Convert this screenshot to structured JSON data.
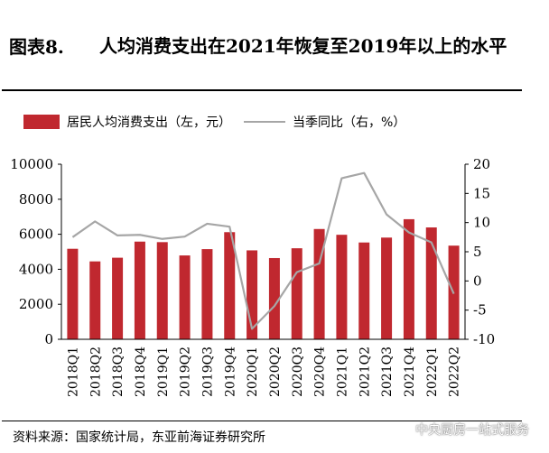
{
  "header": {
    "figure_label": "图表8.",
    "title": "人均消费支出在2021年恢复至2019年以上的水平"
  },
  "legend": {
    "bar_label": "居民人均消费支出（左，元）",
    "line_label": "当季同比（右，%）"
  },
  "footer": {
    "source": "资料来源：国家统计局，东亚前海证券研究所",
    "watermark": "中央厨房一站式服务"
  },
  "colors": {
    "bar": "#c0282f",
    "line": "#a6a6a6",
    "axis": "#000000"
  },
  "chart_data": {
    "type": "bar",
    "categories": [
      "2018Q1",
      "2018Q2",
      "2018Q3",
      "2018Q4",
      "2019Q1",
      "2019Q2",
      "2019Q3",
      "2019Q4",
      "2020Q1",
      "2020Q2",
      "2020Q3",
      "2020Q4",
      "2021Q1",
      "2021Q2",
      "2021Q3",
      "2021Q4",
      "2022Q1",
      "2022Q2"
    ],
    "series": [
      {
        "name": "居民人均消费支出（左，元）",
        "type": "bar",
        "axis": "left",
        "values": [
          5170,
          4450,
          4660,
          5580,
          5550,
          4790,
          5150,
          6120,
          5080,
          4640,
          5200,
          6300,
          5970,
          5530,
          5810,
          6860,
          6390,
          5350
        ]
      },
      {
        "name": "当季同比（右，%）",
        "type": "line",
        "axis": "right",
        "values": [
          7.5,
          10.2,
          7.8,
          7.9,
          7.2,
          7.6,
          9.8,
          9.3,
          -8.2,
          -4.3,
          1.5,
          3.0,
          17.6,
          18.5,
          11.4,
          8.3,
          6.6,
          -2.2
        ]
      }
    ],
    "ylim_left": [
      0,
      10000
    ],
    "yticks_left": [
      0,
      2000,
      4000,
      6000,
      8000,
      10000
    ],
    "ylim_right": [
      -10,
      20
    ],
    "yticks_right": [
      -10,
      -5,
      0,
      5,
      10,
      15,
      20
    ],
    "legend_position": "top"
  }
}
